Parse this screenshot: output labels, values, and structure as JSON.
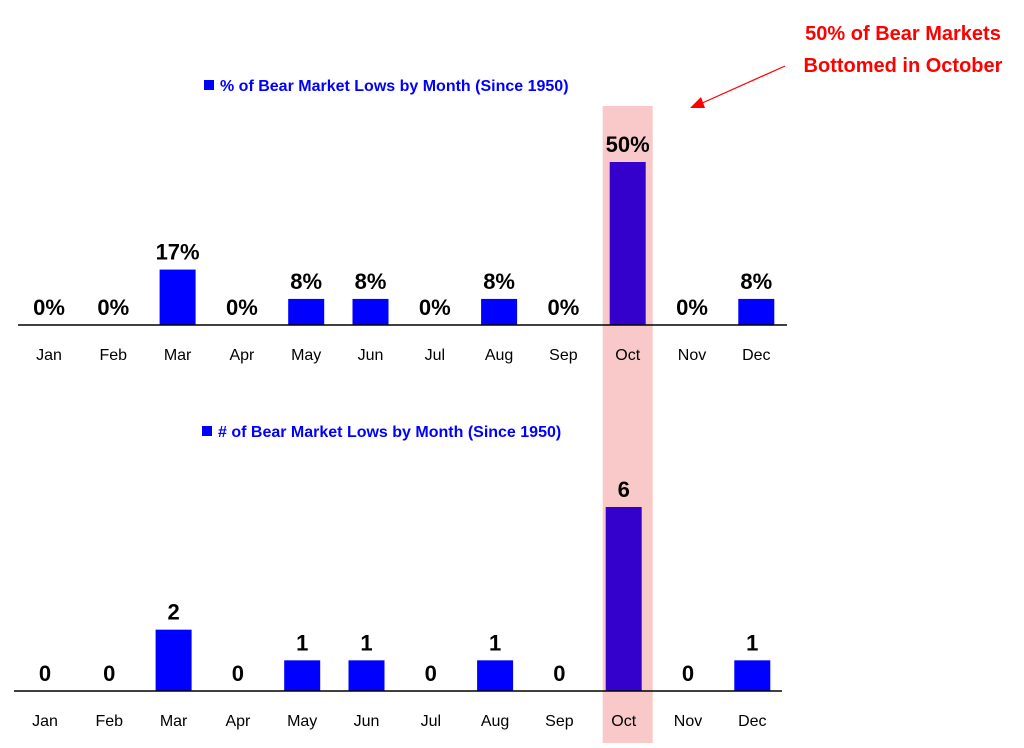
{
  "colors": {
    "bar": "#0000ff",
    "highlight_bar": "#3300cc",
    "highlight_band": "#f9c9c9",
    "legend_text": "#0000ff",
    "annotation": "#ff0000",
    "axis": "#000000"
  },
  "annotation": {
    "line1": "50% of Bear Markets",
    "line2": "Bottomed in October"
  },
  "highlight_category": "Oct",
  "chart_data": [
    {
      "type": "bar",
      "legend": "% of Bear Market Lows by Month (Since 1950)",
      "categories": [
        "Jan",
        "Feb",
        "Mar",
        "Apr",
        "May",
        "Jun",
        "Jul",
        "Aug",
        "Sep",
        "Oct",
        "Nov",
        "Dec"
      ],
      "values": [
        0,
        0,
        17,
        0,
        8,
        8,
        0,
        8,
        0,
        50,
        0,
        8
      ],
      "labels": [
        "0%",
        "0%",
        "17%",
        "0%",
        "8%",
        "8%",
        "0%",
        "8%",
        "0%",
        "50%",
        "0%",
        "8%"
      ],
      "unit": "%",
      "ylim": [
        0,
        50
      ]
    },
    {
      "type": "bar",
      "legend": "# of Bear Market Lows by Month (Since 1950)",
      "categories": [
        "Jan",
        "Feb",
        "Mar",
        "Apr",
        "May",
        "Jun",
        "Jul",
        "Aug",
        "Sep",
        "Oct",
        "Nov",
        "Dec"
      ],
      "values": [
        0,
        0,
        2,
        0,
        1,
        1,
        0,
        1,
        0,
        6,
        0,
        1
      ],
      "labels": [
        "0",
        "0",
        "2",
        "0",
        "1",
        "1",
        "0",
        "1",
        "0",
        "6",
        "0",
        "1"
      ],
      "unit": "count",
      "ylim": [
        0,
        6
      ]
    }
  ]
}
